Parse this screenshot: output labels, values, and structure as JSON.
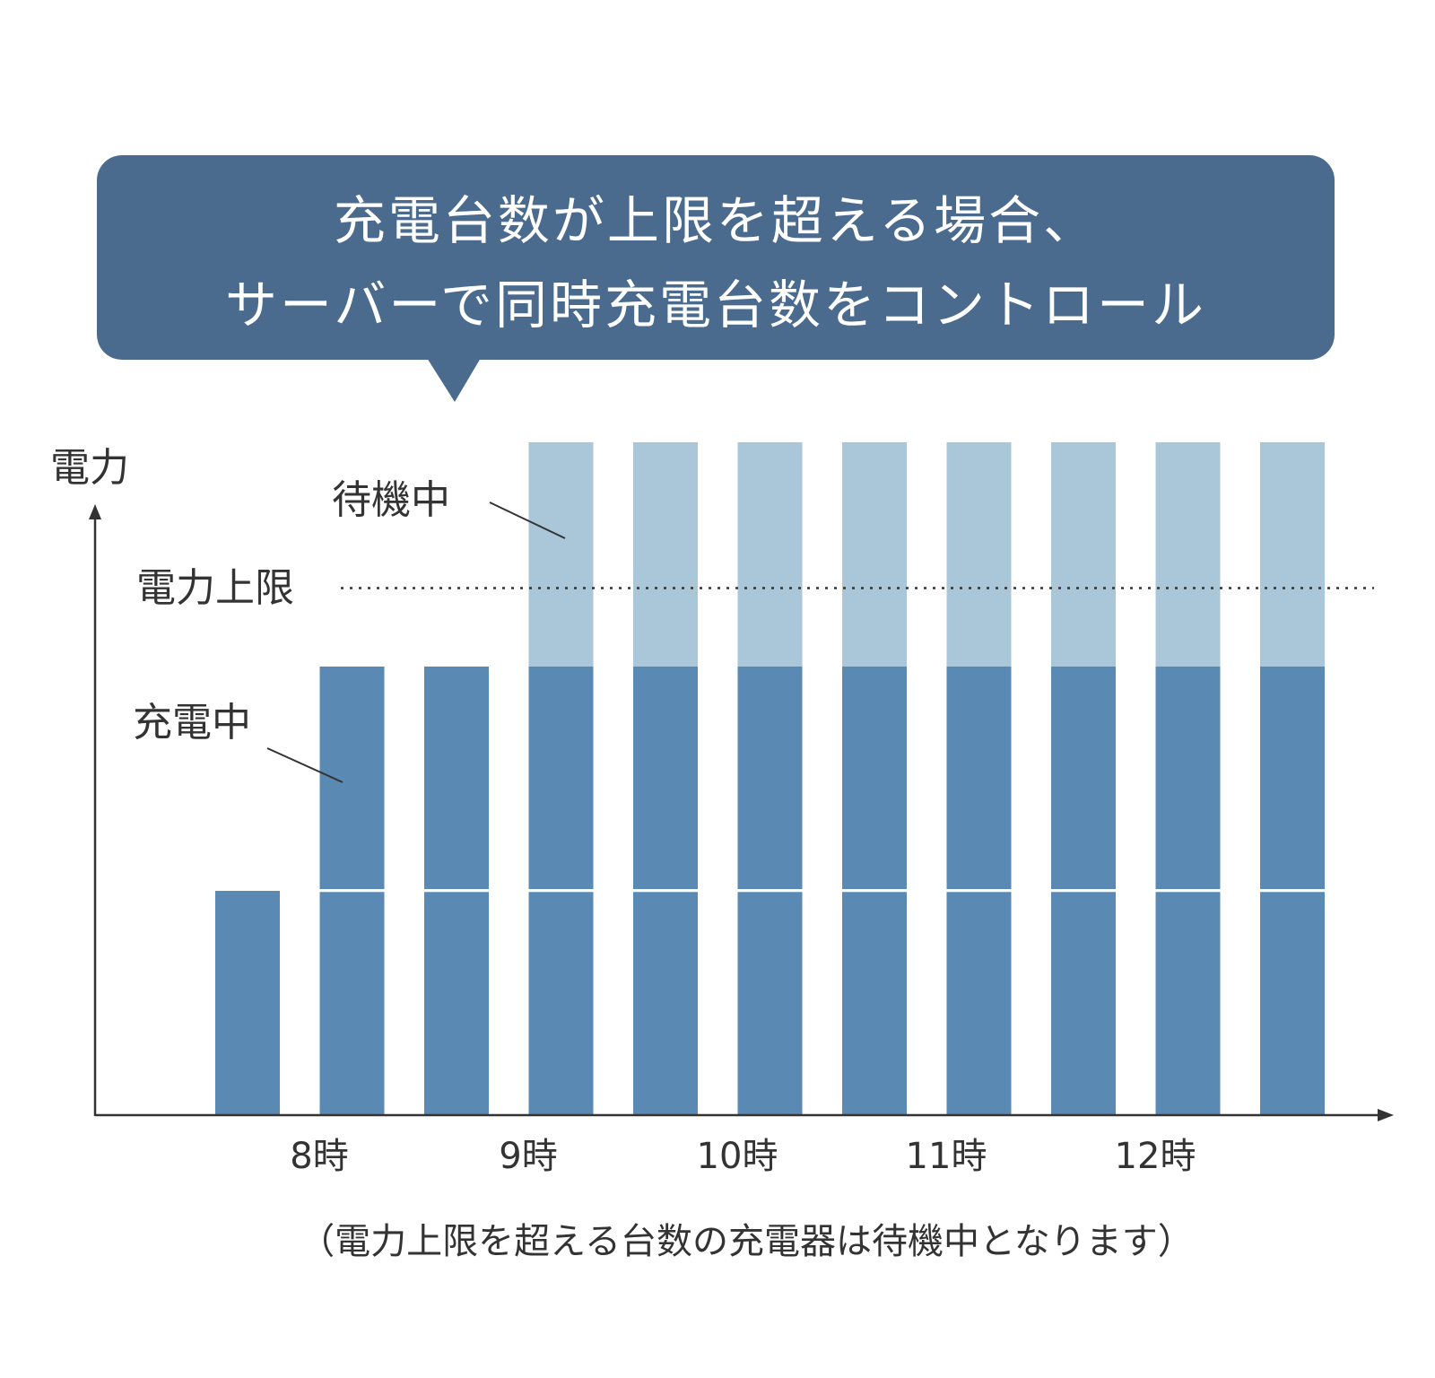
{
  "callout": {
    "line1": "充電台数が上限を超える場合、",
    "line2": "サーバーで同時充電台数をコントロール"
  },
  "labels": {
    "y_axis": "電力",
    "limit": "電力上限",
    "waiting": "待機中",
    "charging": "充電中"
  },
  "caption": "（電力上限を超える台数の充電器は待機中となります）",
  "colors": {
    "callout_bg": "#4a6b8e",
    "charging": "#5a8ab4",
    "waiting": "#aac6d9",
    "axis": "#333333"
  },
  "chart_data": {
    "type": "bar",
    "stacked": true,
    "unit_note": "each block = 1 charger",
    "x_ticks": [
      "8時",
      "9時",
      "10時",
      "11時",
      "12時"
    ],
    "bars": [
      {
        "charging": 1,
        "waiting": 0
      },
      {
        "charging": 2,
        "waiting": 0
      },
      {
        "charging": 2,
        "waiting": 0
      },
      {
        "charging": 2,
        "waiting": 1
      },
      {
        "charging": 2,
        "waiting": 1
      },
      {
        "charging": 2,
        "waiting": 1
      },
      {
        "charging": 2,
        "waiting": 1
      },
      {
        "charging": 2,
        "waiting": 1
      },
      {
        "charging": 2,
        "waiting": 1
      },
      {
        "charging": 2,
        "waiting": 1
      },
      {
        "charging": 2,
        "waiting": 1
      }
    ],
    "series": [
      {
        "name": "充電中",
        "key": "charging"
      },
      {
        "name": "待機中",
        "key": "waiting"
      }
    ],
    "limit": 2.35,
    "ylim": [
      0,
      3
    ],
    "grid": false
  }
}
